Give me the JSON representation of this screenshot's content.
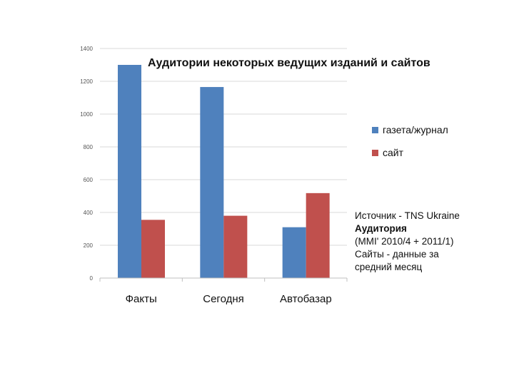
{
  "chart_data": {
    "type": "bar",
    "title": "Аудитории некоторых ведущих изданий и сайтов",
    "categories": [
      "Факты",
      "Сегодня",
      "Автобазар"
    ],
    "series": [
      {
        "name": "газета/журнал",
        "values": [
          1300,
          1165,
          310
        ]
      },
      {
        "name": "сайт",
        "values": [
          355,
          380,
          518
        ]
      }
    ],
    "ylim": [
      0,
      1400
    ],
    "yticks": [
      0,
      200,
      400,
      600,
      800,
      1000,
      1200,
      1400
    ],
    "grid": true,
    "legend": "right",
    "colors": [
      "#4F81BD",
      "#C0504D"
    ]
  },
  "source_note": {
    "line1": "Источник - TNS Ukraine",
    "line2": "Аудитория",
    "line3": "(MMI' 2010/4 + 2011/1)",
    "line4": "Сайты - данные за",
    "line5": "средний месяц"
  }
}
